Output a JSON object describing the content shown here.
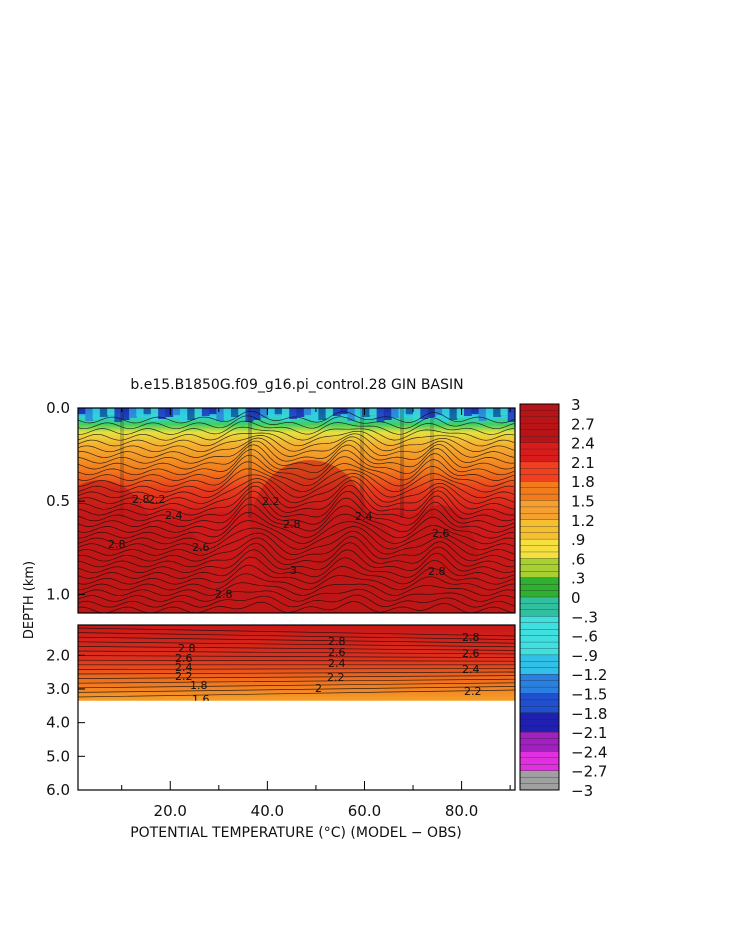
{
  "title": "b.e15.B1850G.f09_g16.pi_control.28 GIN BASIN",
  "xlabel": "POTENTIAL TEMPERATURE (°C) (MODEL − OBS)",
  "ylabel": "DEPTH (km)",
  "chart_data": {
    "type": "heatmap",
    "title": "b.e15.B1850G.f09_g16.pi_control.28 GIN BASIN",
    "xlabel": "POTENTIAL TEMPERATURE (°C) (MODEL − OBS)",
    "ylabel": "DEPTH (km)",
    "x_ticks": [
      "20.0",
      "40.0",
      "60.0",
      "80.0"
    ],
    "x_tick_values": [
      20,
      40,
      60,
      80
    ],
    "xlim": [
      1,
      91
    ],
    "y_ticks_upper": [
      "0.0",
      "0.5",
      "1.0"
    ],
    "y_ticks_upper_values": [
      0.0,
      0.5,
      1.0
    ],
    "ylim_upper": [
      0.0,
      1.1
    ],
    "y_ticks_lower": [
      "2.0",
      "3.0",
      "4.0",
      "5.0",
      "6.0"
    ],
    "y_ticks_lower_values": [
      2.0,
      3.0,
      4.0,
      5.0,
      6.0
    ],
    "ylim_lower": [
      1.1,
      6.0
    ],
    "data_bottom_depth_km": 3.35,
    "colorbar_ticks": [
      "3",
      "2.7",
      "2.4",
      "2.1",
      "1.8",
      "1.5",
      "1.2",
      ".9",
      ".6",
      ".3",
      "0",
      "−.3",
      "−.6",
      "−.9",
      "−1.2",
      "−1.5",
      "−1.8",
      "−2.1",
      "−2.4",
      "−2.7",
      "−3"
    ],
    "colorbar_range": [
      -3,
      3
    ],
    "colorbar_colors": {
      "3": "#b81418",
      "2.4": "#d81c1c",
      "2.1": "#f04020",
      "1.8": "#f27c1c",
      "1.5": "#f5a030",
      "1.2": "#f5c030",
      "0.9": "#f5e040",
      "0.6": "#a8d030",
      "0.3": "#30b030",
      "0": "#30c0a0",
      "-0.3": "#40e0e0",
      "-0.9": "#30c0e8",
      "-1.2": "#2a80e0",
      "-1.5": "#2050d0",
      "-1.8": "#2020b0",
      "-2.1": "#a020c0",
      "-2.4": "#e030e0",
      "-2.7": "#a0a0a0",
      "-3": "#808080"
    },
    "contour_labels_upper": [
      "2.8",
      "2.6",
      "2.4",
      "2.2",
      "3"
    ],
    "contour_labels_lower": [
      "2.8",
      "2.6",
      "2.4",
      "2.2",
      "2",
      "1.8",
      "1.6"
    ],
    "grid": false
  }
}
